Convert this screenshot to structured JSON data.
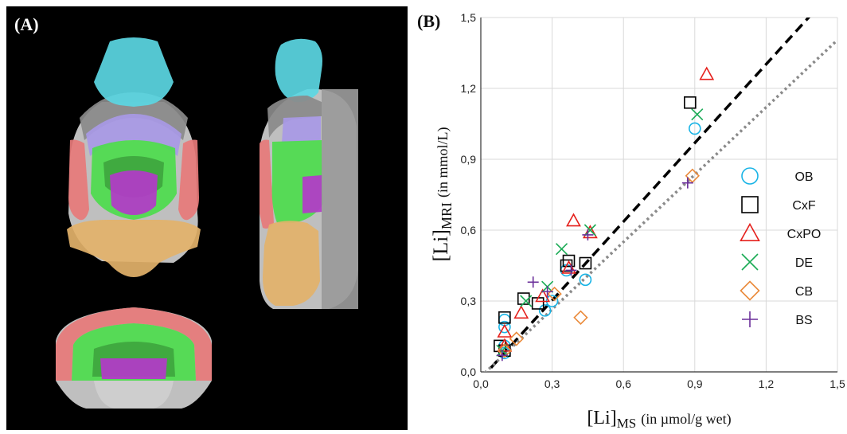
{
  "panel_a": {
    "label": "(A)",
    "region_colors": {
      "OB": "#5bd7e3",
      "cortex_frontal": "#8a8a8a",
      "cortex_parieto_occipital": "#e77a7a",
      "middle_layer": "#a899e6",
      "DE": "#4ddc4d",
      "DE_inner": "#3ea63e",
      "BS": "#b33ac9",
      "CB": "#e3b26a",
      "tissue": "#cfcfcf"
    }
  },
  "panel_b": {
    "label": "(B)"
  },
  "chart_data": {
    "type": "scatter",
    "xlabel": {
      "main": "[Li]",
      "sub": "MS",
      "unit": "(in µmol/g wet)"
    },
    "ylabel": {
      "main": "[Li]",
      "sub": "MRI",
      "unit": "(in mmol/L)"
    },
    "xlim": [
      0,
      1.5
    ],
    "ylim": [
      0,
      1.5
    ],
    "xticks": [
      "0,0",
      "0,3",
      "0,6",
      "0,9",
      "1,2",
      "1,5"
    ],
    "yticks": [
      "0,0",
      "0,3",
      "0,6",
      "0,9",
      "1,2",
      "1,5"
    ],
    "grid": true,
    "legend_position": "right",
    "fit_lines": [
      {
        "style": "dashed",
        "color": "#000000",
        "slope": 1.11,
        "intercept": -0.03
      },
      {
        "style": "dotted",
        "color": "#8a8a8a",
        "slope": 0.95,
        "intercept": -0.02
      }
    ],
    "series": [
      {
        "name": "OB",
        "marker": "circle",
        "color": "#19b4e6",
        "points": [
          [
            0.1,
            0.08
          ],
          [
            0.1,
            0.11
          ],
          [
            0.1,
            0.22
          ],
          [
            0.1,
            0.19
          ],
          [
            0.27,
            0.26
          ],
          [
            0.3,
            0.3
          ],
          [
            0.36,
            0.43
          ],
          [
            0.44,
            0.39
          ],
          [
            0.9,
            1.03
          ]
        ]
      },
      {
        "name": "CxF",
        "marker": "square",
        "color": "#000000",
        "points": [
          [
            0.08,
            0.11
          ],
          [
            0.1,
            0.09
          ],
          [
            0.1,
            0.23
          ],
          [
            0.18,
            0.31
          ],
          [
            0.24,
            0.29
          ],
          [
            0.36,
            0.45
          ],
          [
            0.37,
            0.47
          ],
          [
            0.44,
            0.46
          ],
          [
            0.88,
            1.14
          ]
        ]
      },
      {
        "name": "CxPO",
        "marker": "triangle",
        "color": "#e5201c",
        "points": [
          [
            0.1,
            0.11
          ],
          [
            0.1,
            0.17
          ],
          [
            0.17,
            0.25
          ],
          [
            0.26,
            0.32
          ],
          [
            0.37,
            0.44
          ],
          [
            0.39,
            0.64
          ],
          [
            0.46,
            0.59
          ],
          [
            0.95,
            1.26
          ]
        ]
      },
      {
        "name": "DE",
        "marker": "x",
        "color": "#1aab55",
        "points": [
          [
            0.09,
            0.09
          ],
          [
            0.19,
            0.3
          ],
          [
            0.28,
            0.36
          ],
          [
            0.34,
            0.52
          ],
          [
            0.46,
            0.6
          ],
          [
            0.91,
            1.09
          ]
        ]
      },
      {
        "name": "CB",
        "marker": "diamond",
        "color": "#ea8a3a",
        "points": [
          [
            0.1,
            0.09
          ],
          [
            0.15,
            0.14
          ],
          [
            0.31,
            0.33
          ],
          [
            0.42,
            0.23
          ],
          [
            0.89,
            0.83
          ]
        ]
      },
      {
        "name": "BS",
        "marker": "plus",
        "color": "#6a2f9a",
        "points": [
          [
            0.09,
            0.07
          ],
          [
            0.22,
            0.38
          ],
          [
            0.28,
            0.34
          ],
          [
            0.38,
            0.43
          ],
          [
            0.45,
            0.58
          ],
          [
            0.87,
            0.8
          ]
        ]
      }
    ]
  }
}
